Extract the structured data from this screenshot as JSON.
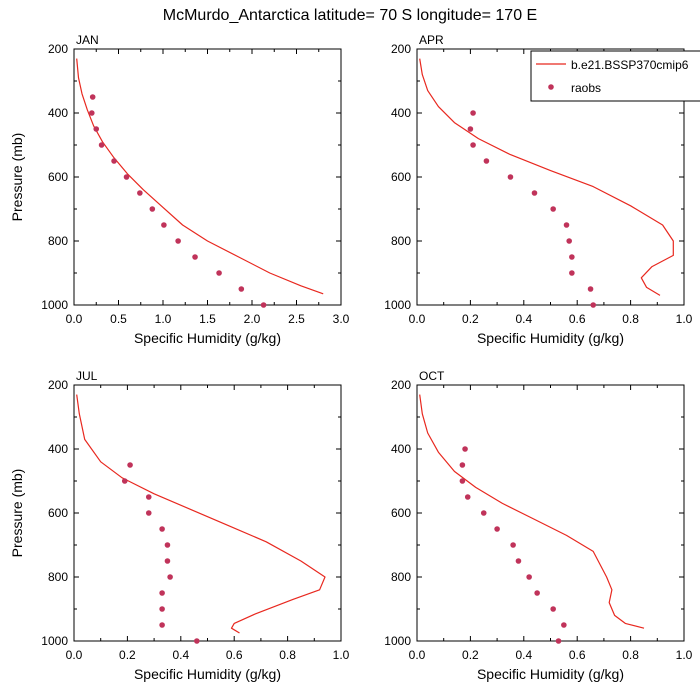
{
  "title": "McMurdo_Antarctica  latitude= 70 S longitude= 170 E",
  "legend": {
    "model_label": "b.e21.BSSP370cmip6",
    "obs_label": "raobs"
  },
  "colors": {
    "model": "#e8281f",
    "obs": "#c0335a",
    "axis": "#000000"
  },
  "chart_data": [
    {
      "type": "line",
      "panel_label": "JAN",
      "xlabel": "Specific Humidity (g/kg)",
      "ylabel": "Pressure (mb)",
      "xlim": [
        0,
        3.0
      ],
      "ylim": [
        1000,
        200
      ],
      "xticks": [
        0.0,
        0.5,
        1.0,
        1.5,
        2.0,
        2.5,
        3.0
      ],
      "xtick_labels": [
        "0.0",
        "0.5",
        "1.0",
        "1.5",
        "2.0",
        "2.5",
        "3.0"
      ],
      "yticks": [
        200,
        400,
        600,
        800,
        1000
      ],
      "ytick_labels": [
        "200",
        "400",
        "600",
        "800",
        "1000"
      ],
      "series": [
        {
          "name": "b.e21.BSSP370cmip6",
          "kind": "line",
          "x": [
            0.03,
            0.05,
            0.09,
            0.15,
            0.22,
            0.32,
            0.45,
            0.6,
            0.78,
            0.98,
            1.22,
            1.5,
            1.85,
            2.2,
            2.55,
            2.8
          ],
          "y": [
            230,
            290,
            340,
            390,
            440,
            490,
            540,
            590,
            640,
            690,
            750,
            800,
            850,
            900,
            940,
            965
          ]
        },
        {
          "name": "raobs",
          "kind": "scatter",
          "x": [
            0.21,
            0.2,
            0.25,
            0.31,
            0.45,
            0.59,
            0.74,
            0.88,
            1.01,
            1.17,
            1.36,
            1.63,
            1.88,
            2.13
          ],
          "y": [
            350,
            400,
            450,
            500,
            550,
            600,
            650,
            700,
            750,
            800,
            850,
            900,
            950,
            1000
          ]
        }
      ]
    },
    {
      "type": "line",
      "panel_label": "APR",
      "xlabel": "Specific Humidity (g/kg)",
      "ylabel": "",
      "xlim": [
        0,
        1.0
      ],
      "ylim": [
        1000,
        200
      ],
      "xticks": [
        0.0,
        0.2,
        0.4,
        0.6,
        0.8,
        1.0
      ],
      "xtick_labels": [
        "0.0",
        "0.2",
        "0.4",
        "0.6",
        "0.8",
        "1.0"
      ],
      "yticks": [
        200,
        400,
        600,
        800,
        1000
      ],
      "ytick_labels": [
        "200",
        "400",
        "600",
        "800",
        "1000"
      ],
      "series": [
        {
          "name": "b.e21.BSSP370cmip6",
          "kind": "line",
          "x": [
            0.01,
            0.02,
            0.04,
            0.08,
            0.14,
            0.23,
            0.35,
            0.5,
            0.66,
            0.8,
            0.92,
            0.96,
            0.96,
            0.88,
            0.84,
            0.86,
            0.91
          ],
          "y": [
            230,
            280,
            330,
            380,
            430,
            480,
            530,
            580,
            630,
            690,
            750,
            800,
            845,
            880,
            915,
            945,
            970
          ]
        },
        {
          "name": "raobs",
          "kind": "scatter",
          "x": [
            0.21,
            0.2,
            0.21,
            0.26,
            0.35,
            0.44,
            0.51,
            0.56,
            0.57,
            0.58,
            0.58,
            0.65,
            0.66
          ],
          "y": [
            400,
            450,
            500,
            550,
            600,
            650,
            700,
            750,
            800,
            850,
            900,
            950,
            1000
          ]
        }
      ]
    },
    {
      "type": "line",
      "panel_label": "JUL",
      "xlabel": "Specific Humidity (g/kg)",
      "ylabel": "Pressure (mb)",
      "xlim": [
        0,
        1.0
      ],
      "ylim": [
        1000,
        200
      ],
      "xticks": [
        0.0,
        0.2,
        0.4,
        0.6,
        0.8,
        1.0
      ],
      "xtick_labels": [
        "0.0",
        "0.2",
        "0.4",
        "0.6",
        "0.8",
        "1.0"
      ],
      "yticks": [
        200,
        400,
        600,
        800,
        1000
      ],
      "ytick_labels": [
        "200",
        "400",
        "600",
        "800",
        "1000"
      ],
      "series": [
        {
          "name": "b.e21.BSSP370cmip6",
          "kind": "line",
          "x": [
            0.01,
            0.02,
            0.04,
            0.1,
            0.18,
            0.3,
            0.44,
            0.58,
            0.72,
            0.85,
            0.94,
            0.92,
            0.82,
            0.68,
            0.6,
            0.59,
            0.62
          ],
          "y": [
            230,
            290,
            370,
            440,
            490,
            540,
            590,
            640,
            690,
            750,
            800,
            840,
            870,
            915,
            945,
            960,
            975
          ]
        },
        {
          "name": "raobs",
          "kind": "scatter",
          "x": [
            0.21,
            0.19,
            0.28,
            0.28,
            0.33,
            0.35,
            0.35,
            0.36,
            0.33,
            0.33,
            0.33,
            0.46
          ],
          "y": [
            450,
            500,
            550,
            600,
            650,
            700,
            750,
            800,
            850,
            900,
            950,
            1000
          ]
        }
      ]
    },
    {
      "type": "line",
      "panel_label": "OCT",
      "xlabel": "Specific Humidity (g/kg)",
      "ylabel": "",
      "xlim": [
        0,
        1.0
      ],
      "ylim": [
        1000,
        200
      ],
      "xticks": [
        0.0,
        0.2,
        0.4,
        0.6,
        0.8,
        1.0
      ],
      "xtick_labels": [
        "0.0",
        "0.2",
        "0.4",
        "0.6",
        "0.8",
        "1.0"
      ],
      "yticks": [
        200,
        400,
        600,
        800,
        1000
      ],
      "ytick_labels": [
        "200",
        "400",
        "600",
        "800",
        "1000"
      ],
      "series": [
        {
          "name": "b.e21.BSSP370cmip6",
          "kind": "line",
          "x": [
            0.01,
            0.02,
            0.04,
            0.08,
            0.14,
            0.22,
            0.32,
            0.44,
            0.56,
            0.66,
            0.71,
            0.73,
            0.72,
            0.74,
            0.78,
            0.85
          ],
          "y": [
            230,
            290,
            350,
            410,
            470,
            520,
            570,
            620,
            670,
            720,
            800,
            840,
            880,
            920,
            945,
            960
          ]
        },
        {
          "name": "raobs",
          "kind": "scatter",
          "x": [
            0.18,
            0.17,
            0.17,
            0.19,
            0.25,
            0.3,
            0.36,
            0.38,
            0.42,
            0.45,
            0.51,
            0.55,
            0.53
          ],
          "y": [
            400,
            450,
            500,
            550,
            600,
            650,
            700,
            750,
            800,
            850,
            900,
            950,
            1000
          ]
        }
      ]
    }
  ]
}
